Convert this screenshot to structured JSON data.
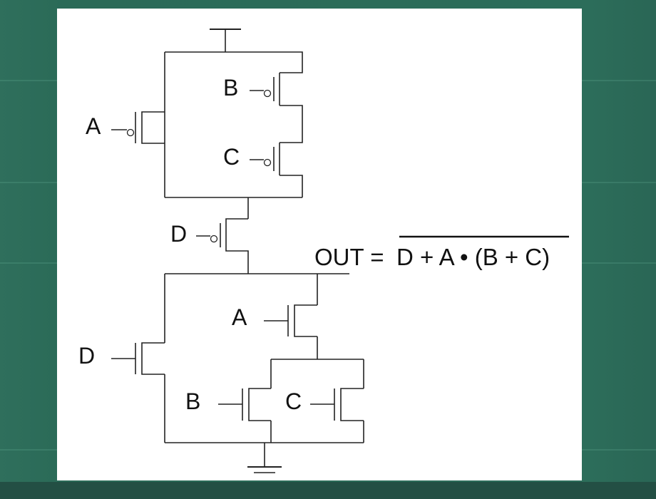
{
  "diagram": {
    "labels": {
      "pmos_a": "A",
      "pmos_b": "B",
      "pmos_c": "C",
      "pmos_d": "D",
      "nmos_a": "A",
      "nmos_d": "D",
      "nmos_b": "B",
      "nmos_c": "C"
    },
    "equation": {
      "lhs": "OUT = ",
      "rhs": "D + A • (B + C)"
    }
  }
}
